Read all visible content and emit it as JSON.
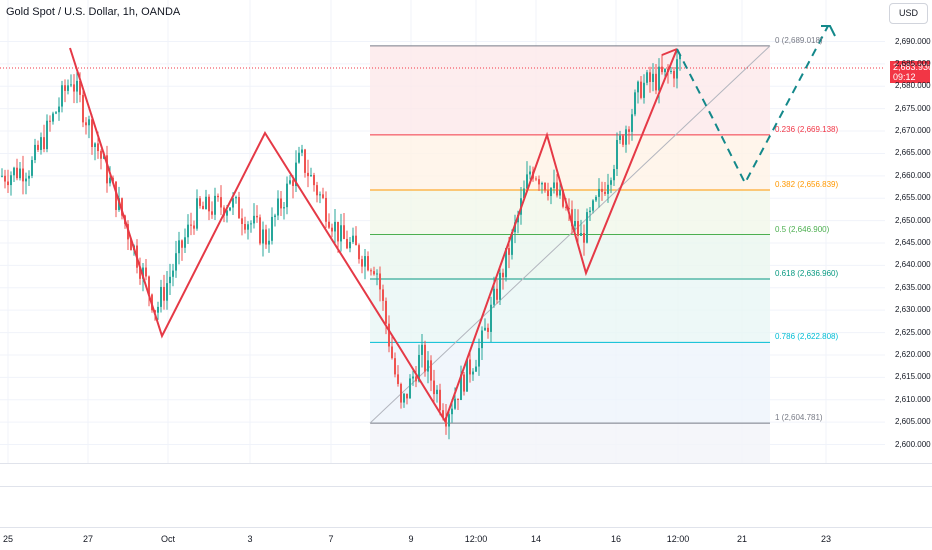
{
  "header": {
    "title": "Gold Spot / U.S. Dollar, 1h, OANDA",
    "currency_button": "USD"
  },
  "price_badge": {
    "price": "2,683.930",
    "countdown": "09:12",
    "color": "#f23645"
  },
  "y_axis": {
    "ticks": [
      "2,690.000",
      "2,685.000",
      "2,680.000",
      "2,675.000",
      "2,670.000",
      "2,665.000",
      "2,660.000",
      "2,655.000",
      "2,650.000",
      "2,645.000",
      "2,640.000",
      "2,635.000",
      "2,630.000",
      "2,625.000",
      "2,620.000",
      "2,615.000",
      "2,610.000",
      "2,605.000",
      "2,600.000"
    ]
  },
  "x_axis": {
    "ticks": [
      "25",
      "27",
      "Oct",
      "3",
      "7",
      "9",
      "12:00",
      "14",
      "16",
      "12:00",
      "21",
      "23"
    ]
  },
  "fibonacci": {
    "levels": [
      {
        "label": "0 (2,689.018)",
        "price": 2689.018,
        "color": "#787b86"
      },
      {
        "label": "0.236 (2,669.138)",
        "price": 2669.138,
        "color": "#f23645"
      },
      {
        "label": "0.382 (2,656.839)",
        "price": 2656.839,
        "color": "#ff9800"
      },
      {
        "label": "0.5 (2,646.900)",
        "price": 2646.9,
        "color": "#4caf50"
      },
      {
        "label": "0.618 (2,636.960)",
        "price": 2636.96,
        "color": "#089981"
      },
      {
        "label": "0.786 (2,622.808)",
        "price": 2622.808,
        "color": "#00bcd4"
      },
      {
        "label": "1 (2,604.781)",
        "price": 2604.781,
        "color": "#787b86"
      }
    ]
  },
  "colors": {
    "up": "#26a69a",
    "down": "#ef5350",
    "pattern": "#e53946",
    "projection": "#13888a",
    "grid": "#f0f3fa"
  }
}
